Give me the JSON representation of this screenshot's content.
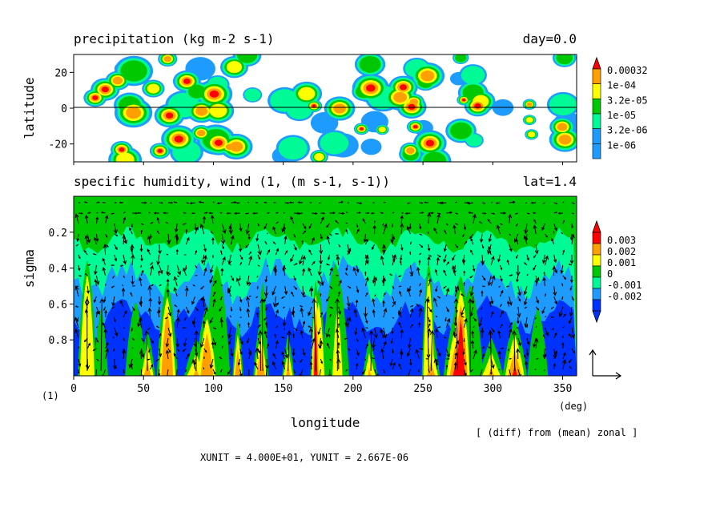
{
  "chart_data": [
    {
      "type": "heatmap",
      "title": "precipitation (kg m-2 s-1)",
      "title_right": "day=0.0",
      "ylabel": "latitude",
      "ylim": [
        -30,
        30
      ],
      "xlim": [
        0,
        360
      ],
      "y_ticks": [
        "20",
        "0",
        "-20"
      ],
      "y_tick_values": [
        20,
        0,
        -20
      ],
      "legend_levels": [
        "0.00032",
        "1e-04",
        "3.2e-05",
        "1e-05",
        "3.2e-06",
        "1e-06"
      ],
      "legend_colors": [
        "#ff0000",
        "#ffa000",
        "#ffff00",
        "#00c800",
        "#00fa96",
        "#1e9bff"
      ],
      "legend_placement": "right"
    },
    {
      "type": "heatmap",
      "title": "specific humidity, wind (1, (m s-1, s-1))",
      "title_right": "lat=1.4",
      "xlabel": "longitude",
      "ylabel": "sigma",
      "xlim": [
        0,
        360
      ],
      "ylim": [
        0,
        1
      ],
      "y_inverted": true,
      "x_ticks": [
        "0",
        "50",
        "100",
        "150",
        "200",
        "250",
        "300",
        "350"
      ],
      "x_tick_values": [
        0,
        50,
        100,
        150,
        200,
        250,
        300,
        350
      ],
      "x_unit_label": "(deg)",
      "y_ticks": [
        "0.2",
        "0.4",
        "0.6",
        "0.8"
      ],
      "y_tick_values": [
        0.2,
        0.4,
        0.6,
        0.8
      ],
      "legend_levels": [
        "0.003",
        "0.002",
        "0.001",
        "0",
        "-0.001",
        "-0.002"
      ],
      "legend_colors": [
        "#ff0000",
        "#ffa000",
        "#ffff00",
        "#00c800",
        "#00fa96",
        "#1e9bff",
        "#0032ff"
      ],
      "legend_placement": "right",
      "vector_field": true
    }
  ],
  "annotations": {
    "panel_marker": "(1)",
    "diff_note": "[ (diff) from (mean) zonal ]",
    "units_line": "XUNIT = 4.000E+01, YUNIT = 2.667E-06"
  }
}
